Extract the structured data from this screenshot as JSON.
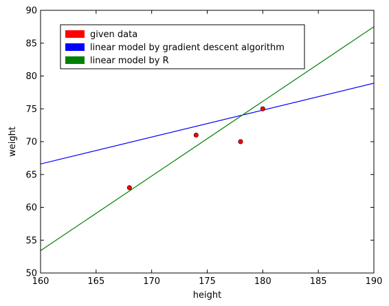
{
  "chart_data": {
    "type": "scatter",
    "title": "",
    "xlabel": "height",
    "ylabel": "weight",
    "xlim": [
      160,
      190
    ],
    "ylim": [
      50,
      90
    ],
    "xticks": [
      160,
      165,
      170,
      175,
      180,
      185,
      190
    ],
    "yticks": [
      50,
      55,
      60,
      65,
      70,
      75,
      80,
      85,
      90
    ],
    "grid": false,
    "legend_position": "top-left",
    "points": {
      "name": "given data",
      "color": "#ff0000",
      "x": [
        168,
        174,
        178,
        180
      ],
      "y": [
        63,
        71,
        70,
        75
      ]
    },
    "lines": [
      {
        "name": "linear model by gradient descent algorithm",
        "color": "#0000ff",
        "x": [
          160,
          190
        ],
        "y": [
          66.6,
          78.9
        ]
      },
      {
        "name": "linear model by R",
        "color": "#008000",
        "x": [
          160,
          190
        ],
        "y": [
          53.4,
          87.5
        ]
      }
    ],
    "legend": [
      {
        "label": "given data",
        "color": "#ff0000"
      },
      {
        "label": "linear model by gradient descent algorithm",
        "color": "#0000ff"
      },
      {
        "label": "linear model by R",
        "color": "#008000"
      }
    ]
  }
}
